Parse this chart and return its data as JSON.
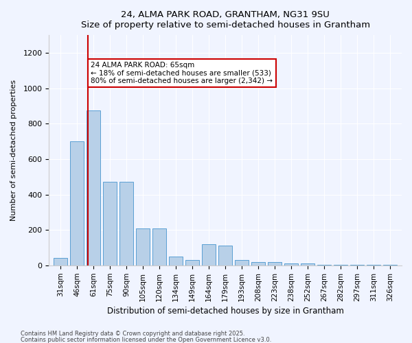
{
  "title1": "24, ALMA PARK ROAD, GRANTHAM, NG31 9SU",
  "title2": "Size of property relative to semi-detached houses in Grantham",
  "xlabel": "Distribution of semi-detached houses by size in Grantham",
  "ylabel": "Number of semi-detached properties",
  "categories": [
    "31sqm",
    "46sqm",
    "61sqm",
    "75sqm",
    "90sqm",
    "105sqm",
    "120sqm",
    "134sqm",
    "149sqm",
    "164sqm",
    "179sqm",
    "193sqm",
    "208sqm",
    "223sqm",
    "238sqm",
    "252sqm",
    "267sqm",
    "282sqm",
    "297sqm",
    "311sqm",
    "326sqm"
  ],
  "values": [
    40,
    700,
    875,
    470,
    470,
    210,
    210,
    50,
    30,
    120,
    110,
    30,
    20,
    20,
    10,
    10,
    5,
    5,
    5,
    5,
    5
  ],
  "bar_color": "#b8d0e8",
  "bar_edge_color": "#5a9fd4",
  "vline_x_index": 1.65,
  "vline_color": "#cc0000",
  "annotation_text": "24 ALMA PARK ROAD: 65sqm\n← 18% of semi-detached houses are smaller (533)\n80% of semi-detached houses are larger (2,342) →",
  "annotation_box_color": "#ffffff",
  "annotation_box_edge_color": "#cc0000",
  "ylim": [
    0,
    1300
  ],
  "yticks": [
    0,
    200,
    400,
    600,
    800,
    1000,
    1200
  ],
  "footer1": "Contains HM Land Registry data © Crown copyright and database right 2025.",
  "footer2": "Contains public sector information licensed under the Open Government Licence v3.0.",
  "bg_color": "#f0f4ff",
  "plot_bg_color": "#f0f4ff"
}
